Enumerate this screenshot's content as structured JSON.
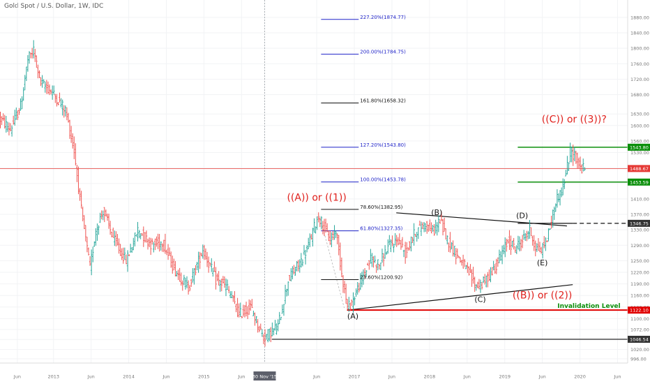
{
  "header": {
    "title": "Gold Spot / U.S. Dollar, 1W, IDC"
  },
  "colors": {
    "up": "#26a69a",
    "down": "#ef5350",
    "wave_red": "#e0201c",
    "green": "#0b8f0b",
    "fib_blue": "#1e22c8",
    "fib_black": "#111111",
    "dark_label": "#333333",
    "invalidation": "#e00000",
    "axis_text": "#777777",
    "current": "#e53935"
  },
  "chart_data": {
    "type": "candlestick",
    "title": "Gold Spot / U.S. Dollar, 1W, IDC",
    "ylim": [
      985,
      1925
    ],
    "y_ticks": [
      1880,
      1840,
      1800,
      1760,
      1720,
      1680,
      1630,
      1600,
      1560,
      1530,
      1490,
      1450,
      1410,
      1370,
      1330,
      1290,
      1250,
      1220,
      1190,
      1160,
      1130,
      1100,
      1072,
      1046,
      1020,
      996
    ],
    "y_tick_labels": [
      "1880.00",
      "1840.00",
      "1800.00",
      "1760.00",
      "1720.00",
      "1680.00",
      "1630.00",
      "1600.00",
      "1560.00",
      "1530.00",
      "1490.00",
      "1450.00",
      "1410.00",
      "1370.00",
      "1330.00",
      "1290.00",
      "1250.00",
      "1220.00",
      "1190.00",
      "1160.00",
      "1130.00",
      "1100.00",
      "1072.00",
      "1046.00",
      "1020.00",
      "996.00"
    ],
    "x_ticks": [
      "Jun",
      "2013",
      "Jun",
      "2014",
      "Jun",
      "2015",
      "Jun",
      "30 Nov '15",
      "Jun",
      "2017",
      "Jun",
      "2018",
      "Jun",
      "2019",
      "Jun",
      "2020",
      "Jun"
    ],
    "x_tick_index": [
      12,
      37,
      63,
      89,
      115,
      141,
      167,
      183,
      219,
      245,
      271,
      297,
      323,
      349,
      375,
      401,
      427
    ],
    "price_path": [
      [
        0,
        1620
      ],
      [
        8,
        1590
      ],
      [
        15,
        1650
      ],
      [
        20,
        1770
      ],
      [
        24,
        1795
      ],
      [
        29,
        1710
      ],
      [
        36,
        1690
      ],
      [
        46,
        1640
      ],
      [
        52,
        1535
      ],
      [
        57,
        1380
      ],
      [
        63,
        1230
      ],
      [
        67,
        1330
      ],
      [
        72,
        1380
      ],
      [
        80,
        1300
      ],
      [
        88,
        1250
      ],
      [
        96,
        1330
      ],
      [
        106,
        1290
      ],
      [
        113,
        1300
      ],
      [
        121,
        1230
      ],
      [
        131,
        1180
      ],
      [
        141,
        1280
      ],
      [
        150,
        1200
      ],
      [
        158,
        1180
      ],
      [
        166,
        1110
      ],
      [
        174,
        1130
      ],
      [
        183,
        1051
      ],
      [
        193,
        1080
      ],
      [
        200,
        1200
      ],
      [
        209,
        1250
      ],
      [
        214,
        1290
      ],
      [
        218,
        1337
      ],
      [
        221,
        1366
      ],
      [
        225,
        1335
      ],
      [
        229,
        1300
      ],
      [
        233,
        1330
      ],
      [
        237,
        1220
      ],
      [
        241,
        1128
      ],
      [
        245,
        1150
      ],
      [
        250,
        1195
      ],
      [
        257,
        1255
      ],
      [
        263,
        1240
      ],
      [
        269,
        1285
      ],
      [
        276,
        1305
      ],
      [
        281,
        1270
      ],
      [
        288,
        1325
      ],
      [
        295,
        1345
      ],
      [
        300,
        1325
      ],
      [
        305,
        1355
      ],
      [
        310,
        1305
      ],
      [
        315,
        1275
      ],
      [
        322,
        1235
      ],
      [
        330,
        1185
      ],
      [
        336,
        1195
      ],
      [
        344,
        1240
      ],
      [
        352,
        1300
      ],
      [
        357,
        1283
      ],
      [
        362,
        1303
      ],
      [
        367,
        1330
      ],
      [
        371,
        1285
      ],
      [
        375,
        1275
      ],
      [
        380,
        1320
      ],
      [
        385,
        1405
      ],
      [
        390,
        1440
      ],
      [
        395,
        1530
      ],
      [
        398,
        1525
      ],
      [
        402,
        1490
      ],
      [
        404,
        1488
      ]
    ],
    "last_price": 1488.67,
    "price_labels": [
      {
        "value": 1543.8,
        "label": "1543.80",
        "color": "green"
      },
      {
        "value": 1488.67,
        "label": "1488.67",
        "color": "current"
      },
      {
        "value": 1453.59,
        "label": "1453.59",
        "color": "green"
      },
      {
        "value": 1346.75,
        "label": "1346.75",
        "color": "dark_label"
      },
      {
        "value": 1122.1,
        "label": "1122.10",
        "color": "invalidation"
      },
      {
        "value": 1046.54,
        "label": "1046.54",
        "color": "dark_label"
      }
    ],
    "fib_levels": [
      {
        "value": 1874.77,
        "label": "227.20%(1874.77)",
        "color": "fib_blue"
      },
      {
        "value": 1784.75,
        "label": "200.00%(1784.75)",
        "color": "fib_blue"
      },
      {
        "value": 1658.32,
        "label": "161.80%(1658.32)",
        "color": "fib_black"
      },
      {
        "value": 1543.8,
        "label": "127.20%(1543.80)",
        "color": "fib_blue"
      },
      {
        "value": 1453.78,
        "label": "100.00%(1453.78)",
        "color": "fib_blue"
      },
      {
        "value": 1382.95,
        "label": "78.60%(1382.95)",
        "color": "fib_black"
      },
      {
        "value": 1327.35,
        "label": "61.80%(1327.35)",
        "color": "fib_blue"
      },
      {
        "value": 1200.92,
        "label": "23.60%(1200.92)",
        "color": "fib_black"
      }
    ],
    "fib_x_range": [
      222,
      248
    ],
    "wave_labels": [
      {
        "text": "((C)) or ((3))?",
        "x": 397,
        "y": 1608,
        "color": "wave_red",
        "size": 14
      },
      {
        "text": "((A)) or ((1))",
        "x": 219,
        "y": 1405,
        "color": "wave_red",
        "size": 14
      },
      {
        "text": "((B)) or ((2))",
        "x": 375,
        "y": 1152,
        "color": "wave_red",
        "size": 14
      },
      {
        "text": "(B)",
        "x": 302,
        "y": 1368,
        "color": "fib_black",
        "size": 11
      },
      {
        "text": "(D)",
        "x": 361,
        "y": 1360,
        "color": "fib_black",
        "size": 11
      },
      {
        "text": "(E)",
        "x": 375,
        "y": 1238,
        "color": "fib_black",
        "size": 11
      },
      {
        "text": "(C)",
        "x": 332,
        "y": 1143,
        "color": "fib_black",
        "size": 11
      },
      {
        "text": "(A)",
        "x": 244,
        "y": 1100,
        "color": "fib_black",
        "size": 11
      },
      {
        "text": "Invalidation Level",
        "x": 429,
        "y": 1128,
        "color": "green",
        "size": 9,
        "anchor": "end",
        "bold": true
      }
    ],
    "lines": [
      {
        "name": "triangle-upper-trendline",
        "x1": 274,
        "y1": 1374,
        "x2": 392,
        "y2": 1340,
        "color": "fib_black",
        "width": 1.2
      },
      {
        "name": "triangle-lower-trendline",
        "x1": 240,
        "y1": 1122,
        "x2": 396,
        "y2": 1188,
        "color": "fib_black",
        "width": 1.2
      },
      {
        "name": "invalidation-line",
        "x1": 240,
        "y1": 1122.1,
        "x2": 434,
        "y2": 1122.1,
        "color": "invalidation",
        "width": 2
      },
      {
        "name": "low-support-line",
        "x1": 188,
        "y1": 1046.54,
        "x2": 434,
        "y2": 1046.54,
        "color": "fib_black",
        "width": 1.2
      },
      {
        "name": "target-1543-line",
        "x1": 358,
        "y1": 1543.8,
        "x2": 434,
        "y2": 1543.8,
        "color": "green",
        "width": 1.5
      },
      {
        "name": "target-1453-line",
        "x1": 358,
        "y1": 1453.59,
        "x2": 434,
        "y2": 1453.59,
        "color": "green",
        "width": 1.5
      },
      {
        "name": "breakout-solid-line",
        "x1": 358,
        "y1": 1346.75,
        "x2": 396,
        "y2": 1346.75,
        "color": "fib_black",
        "width": 1.2
      },
      {
        "name": "breakout-dashed-line",
        "x1": 396,
        "y1": 1346.75,
        "x2": 434,
        "y2": 1346.75,
        "color": "fib_black",
        "width": 1.2,
        "dash": "6,4"
      },
      {
        "name": "current-price-line",
        "x1": 0,
        "y1": 1488.67,
        "x2": 434,
        "y2": 1488.67,
        "color": "current",
        "width": 0.8
      }
    ],
    "retrace_dashes": [
      [
        [
          238,
          1128
        ],
        [
          221,
          1366
        ]
      ],
      [
        [
          221,
          1366
        ],
        [
          238,
          1128
        ]
      ]
    ],
    "date_highlight_index": 183
  }
}
